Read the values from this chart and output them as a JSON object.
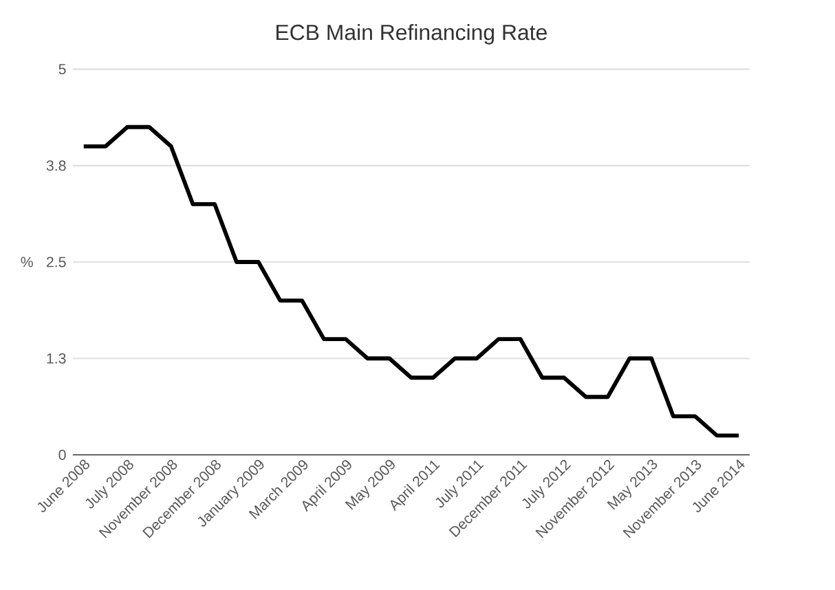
{
  "chart_data": {
    "type": "line",
    "title": "ECB  Main Refinancing Rate",
    "ylabel": "%",
    "categories": [
      "June 2008",
      null,
      "July 2008",
      null,
      "November 2008",
      null,
      "December 2008",
      null,
      "January 2009",
      null,
      "March 2009",
      null,
      "April 2009",
      null,
      "May 2009",
      null,
      "April 2011",
      null,
      "July 2011",
      null,
      "December 2011",
      null,
      "July 2012",
      null,
      "November 2012",
      null,
      "May 2013",
      null,
      "November 2013",
      null,
      "June 2014"
    ],
    "series": [
      {
        "color": "#000000",
        "values": [
          4.0,
          4.0,
          4.25,
          4.25,
          4.0,
          3.25,
          3.25,
          2.5,
          2.5,
          2.0,
          2.0,
          1.5,
          1.5,
          1.25,
          1.25,
          1.0,
          1.0,
          1.25,
          1.25,
          1.5,
          1.5,
          1.0,
          1.0,
          0.75,
          0.75,
          1.25,
          1.25,
          0.5,
          0.5,
          0.25,
          0.25
        ]
      }
    ],
    "ylim": [
      0,
      5
    ],
    "yticks": [
      0,
      {
        "value": 1.25,
        "label": "1.3"
      },
      2.5,
      {
        "value": 3.75,
        "label": "3.8"
      },
      5
    ],
    "grid": "y",
    "marker": "none",
    "line_style": "solid"
  }
}
